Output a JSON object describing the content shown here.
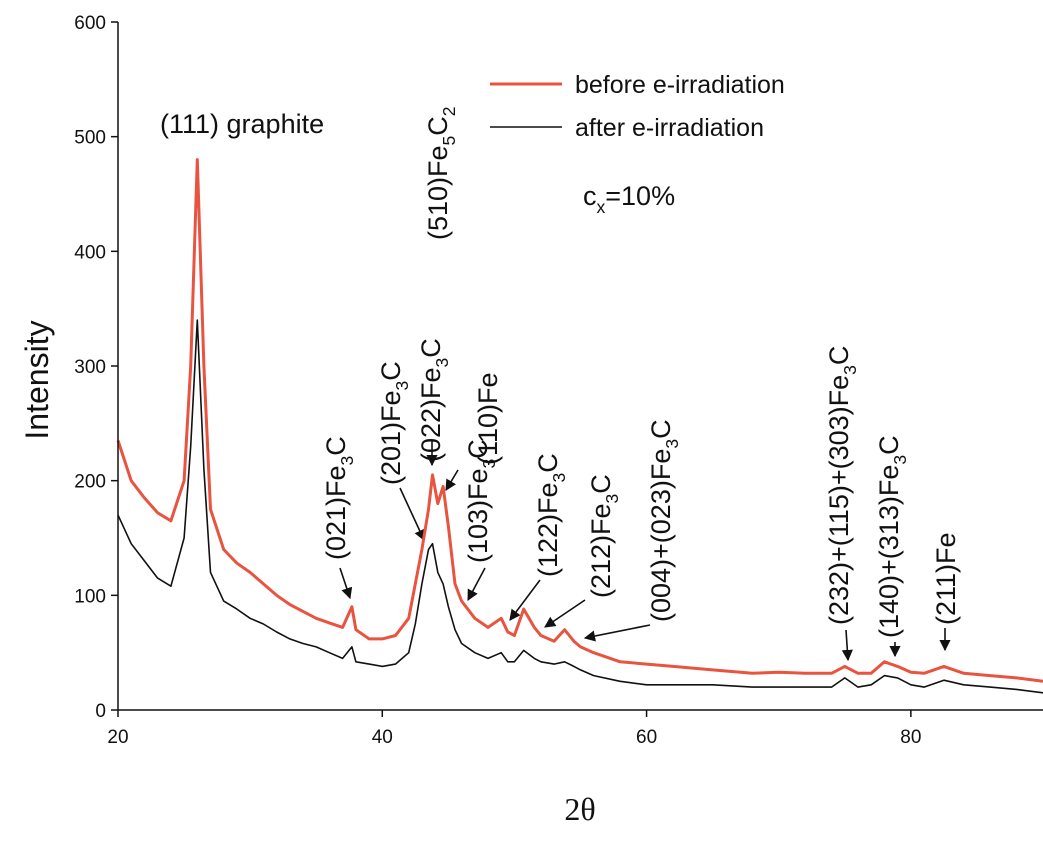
{
  "chart_data": {
    "type": "line",
    "x": [
      20,
      21,
      22,
      23,
      24,
      25,
      25.5,
      26,
      26.5,
      27,
      28,
      29,
      30,
      31,
      32,
      33,
      34,
      35,
      36,
      37,
      37.7,
      38,
      39,
      40,
      41,
      42,
      42.5,
      43,
      43.5,
      43.8,
      44.2,
      44.6,
      45,
      45.5,
      46,
      47,
      48,
      49,
      49.5,
      50,
      50.7,
      51.5,
      52,
      53,
      53.8,
      54.5,
      55,
      56,
      58,
      60,
      62,
      65,
      68,
      70,
      72,
      74,
      75,
      76,
      77,
      78,
      79,
      80,
      81,
      82.5,
      84,
      86,
      88,
      90
    ],
    "series": [
      {
        "name": "before e-irradiation",
        "color": "#e8543f",
        "values": [
          235,
          200,
          185,
          172,
          165,
          200,
          300,
          480,
          300,
          175,
          140,
          128,
          120,
          110,
          100,
          92,
          86,
          80,
          76,
          72,
          90,
          70,
          62,
          62,
          65,
          80,
          110,
          140,
          175,
          205,
          180,
          195,
          160,
          110,
          95,
          80,
          72,
          80,
          68,
          65,
          88,
          72,
          65,
          60,
          70,
          60,
          55,
          50,
          42,
          40,
          38,
          35,
          32,
          33,
          32,
          32,
          38,
          32,
          32,
          42,
          38,
          33,
          32,
          38,
          32,
          30,
          28,
          25
        ]
      },
      {
        "name": "after e-irradiation",
        "color": "#111111",
        "values": [
          170,
          145,
          130,
          115,
          108,
          150,
          230,
          340,
          210,
          120,
          95,
          88,
          80,
          75,
          68,
          62,
          58,
          55,
          50,
          45,
          55,
          42,
          40,
          38,
          40,
          50,
          75,
          110,
          140,
          145,
          120,
          110,
          90,
          70,
          58,
          50,
          45,
          50,
          42,
          42,
          52,
          45,
          42,
          40,
          42,
          38,
          35,
          30,
          25,
          22,
          22,
          22,
          20,
          20,
          20,
          20,
          28,
          20,
          22,
          30,
          28,
          22,
          20,
          26,
          22,
          20,
          18,
          15
        ]
      }
    ],
    "xlim": [
      20,
      90
    ],
    "ylim": [
      0,
      600
    ],
    "xticks": [
      20,
      40,
      60,
      80
    ],
    "yticks": [
      0,
      100,
      200,
      300,
      400,
      500,
      600
    ],
    "xlabel": "2θ",
    "ylabel": "Intensity",
    "annotations": [
      {
        "text": [
          "(111) graphite"
        ]
      },
      {
        "text": [
          "(510)Fe",
          "5",
          "C",
          "2"
        ]
      },
      {
        "text": [
          "(021)Fe",
          "3",
          "C"
        ]
      },
      {
        "text": [
          "(201)Fe",
          "3",
          "C"
        ]
      },
      {
        "text": [
          "(022)Fe",
          "3",
          "C"
        ]
      },
      {
        "text": [
          "(110)Fe"
        ]
      },
      {
        "text": [
          "(103)Fe",
          "3",
          "C"
        ]
      },
      {
        "text": [
          "(122)Fe",
          "3",
          "C"
        ]
      },
      {
        "text": [
          "(212)Fe",
          "3",
          "C"
        ]
      },
      {
        "text": [
          "(004)+(023)Fe",
          "3",
          "C"
        ]
      },
      {
        "text": [
          "(232)+(115)+(303)Fe",
          "3",
          "C"
        ]
      },
      {
        "text": [
          "(140)+(313)Fe",
          "3",
          "C"
        ]
      },
      {
        "text": [
          "(211)Fe"
        ]
      },
      {
        "text": [
          "c",
          "x",
          "=10%"
        ]
      }
    ]
  }
}
